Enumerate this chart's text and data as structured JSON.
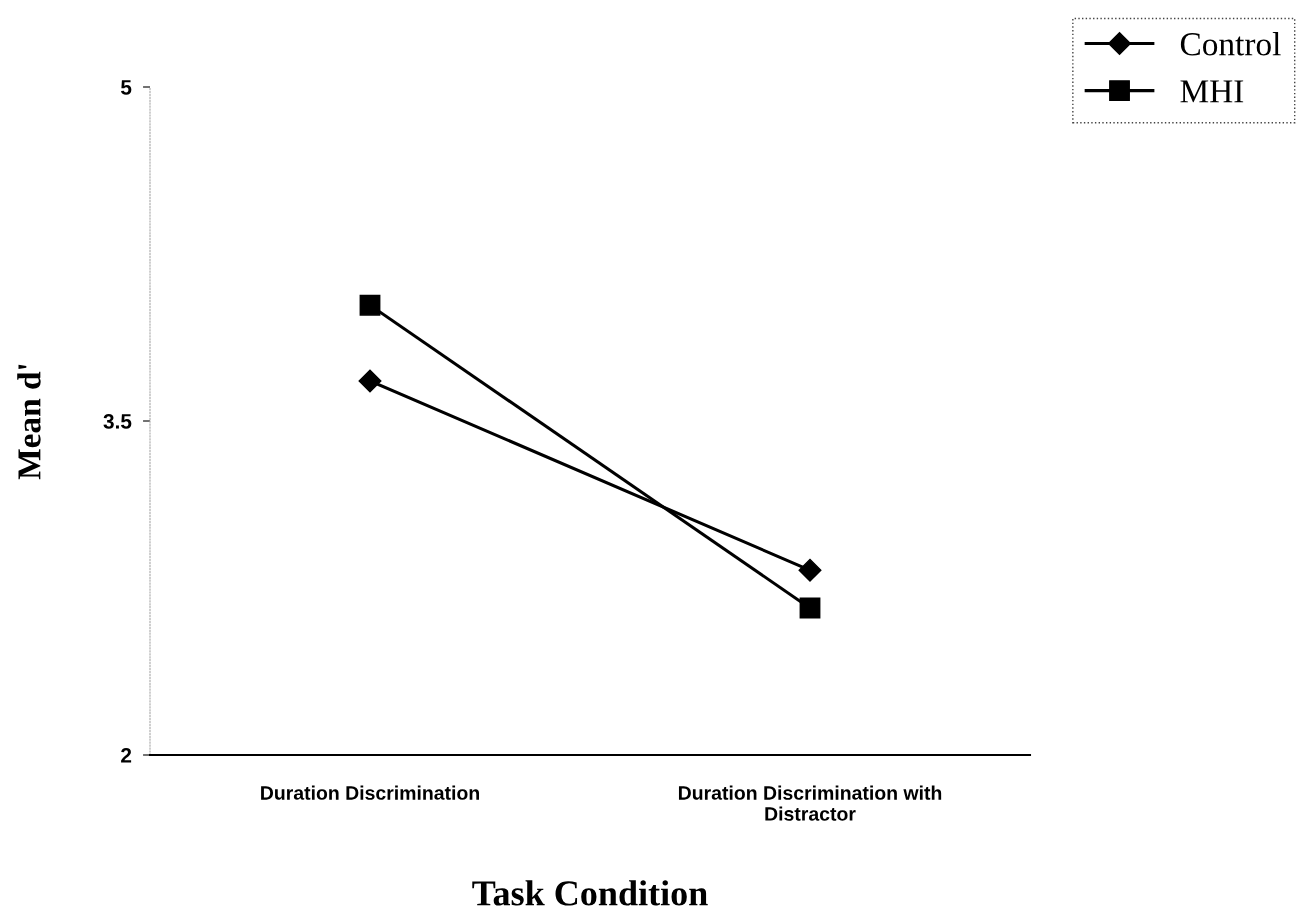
{
  "chart_data": {
    "type": "line",
    "xlabel": "Task Condition",
    "ylabel": "Mean d'",
    "categories": [
      "Duration Discrimination",
      "Duration Discrimination with\nDistractor"
    ],
    "series": [
      {
        "name": "Control",
        "color": "#000000",
        "marker": "diamond",
        "values": [
          3.68,
          2.83
        ]
      },
      {
        "name": "MHI",
        "color": "#000000",
        "marker": "square",
        "values": [
          4.02,
          2.66
        ]
      }
    ],
    "ylim": [
      2,
      5
    ],
    "yticks": [
      2,
      3.5,
      5
    ],
    "grid": false,
    "legend": "top right",
    "line_style": "solid"
  }
}
